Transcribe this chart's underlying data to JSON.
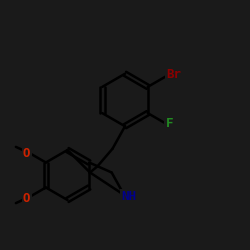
{
  "bg_color": "#1a1a1a",
  "bond_color": "#000000",
  "line_width": 1.8,
  "atom_colors": {
    "Br": "#8B0000",
    "F": "#228B22",
    "N": "#00008B",
    "O": "#cc2200"
  },
  "font_size": 9,
  "fig_bg": "#1a1a1a"
}
